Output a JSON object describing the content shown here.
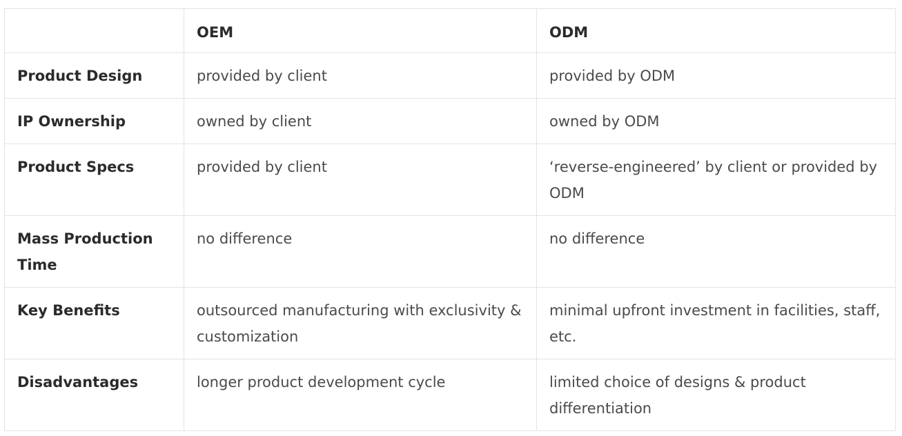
{
  "table": {
    "columns": [
      "",
      "OEM",
      "ODM"
    ],
    "rows": [
      {
        "label": "Product Design",
        "oem": "provided by client",
        "odm": "provided by ODM"
      },
      {
        "label": "IP Ownership",
        "oem": "owned by client",
        "odm": "owned by ODM"
      },
      {
        "label": "Product Specs",
        "oem": "provided by client",
        "odm": "‘reverse-engineered’ by client or provided by ODM"
      },
      {
        "label": "Mass Production Time",
        "oem": "no difference",
        "odm": "no difference"
      },
      {
        "label": "Key Benefits",
        "oem": "outsourced manufacturing with exclusivity & customization",
        "odm": "minimal upfront investment in facilities, staff, etc."
      },
      {
        "label": "Disadvantages",
        "oem": "longer product development cycle",
        "odm": "limited choice of designs & product differentiation"
      }
    ]
  }
}
